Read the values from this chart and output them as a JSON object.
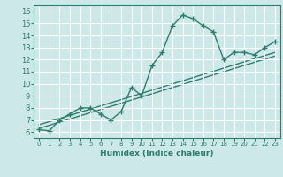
{
  "xlabel": "Humidex (Indice chaleur)",
  "ylabel": "",
  "bg_color": "#cce8e8",
  "grid_color": "#ffffff",
  "line_color": "#2e7d6e",
  "xlim": [
    -0.5,
    23.5
  ],
  "ylim": [
    5.5,
    16.5
  ],
  "xticks": [
    0,
    1,
    2,
    3,
    4,
    5,
    6,
    7,
    8,
    9,
    10,
    11,
    12,
    13,
    14,
    15,
    16,
    17,
    18,
    19,
    20,
    21,
    22,
    23
  ],
  "yticks": [
    6,
    7,
    8,
    9,
    10,
    11,
    12,
    13,
    14,
    15,
    16
  ],
  "curve_x": [
    0,
    1,
    2,
    3,
    4,
    5,
    6,
    7,
    8,
    9,
    10,
    11,
    12,
    13,
    14,
    15,
    16,
    17,
    18,
    19,
    20,
    21,
    22,
    23
  ],
  "curve_y": [
    6.2,
    6.1,
    7.0,
    7.5,
    8.0,
    8.0,
    7.5,
    7.0,
    7.7,
    9.7,
    9.0,
    11.5,
    12.6,
    14.8,
    15.7,
    15.4,
    14.8,
    14.3,
    12.0,
    12.6,
    12.6,
    12.4,
    13.0,
    13.5
  ],
  "reg_line1": [
    [
      0,
      23
    ],
    [
      6.3,
      12.3
    ]
  ],
  "reg_line2": [
    [
      0,
      23
    ],
    [
      6.6,
      12.6
    ]
  ]
}
